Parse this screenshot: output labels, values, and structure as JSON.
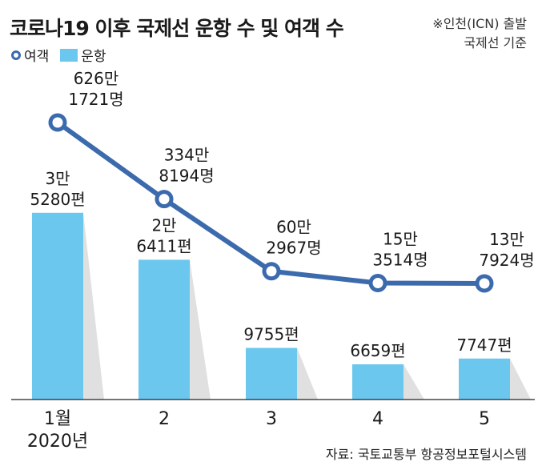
{
  "title": "코로나19 이후 국제선 운항 수 및 여객 수",
  "note": [
    "※인천(ICN) 출발",
    "국제선 기준"
  ],
  "legend": {
    "passengers": "여객",
    "flights": "운항"
  },
  "source": "자료: 국토교통부 항공정보포털시스템",
  "colors": {
    "bar": "#6cc7ef",
    "line": "#3b6aad",
    "shadow": "#d8d8d8"
  },
  "chart_data": {
    "type": "bar",
    "categories": [
      [
        "1월",
        "2020년"
      ],
      [
        "2"
      ],
      [
        "3"
      ],
      [
        "4"
      ],
      [
        "5"
      ]
    ],
    "series": [
      {
        "name": "운항",
        "type": "bar",
        "values": [
          35280,
          26411,
          9755,
          6659,
          7747
        ],
        "labels": [
          [
            "3만",
            "5280편"
          ],
          [
            "2만",
            "6411편"
          ],
          [
            "9755편"
          ],
          [
            "6659편"
          ],
          [
            "7747편"
          ]
        ]
      },
      {
        "name": "여객",
        "type": "line",
        "values": [
          6261721,
          3348194,
          602967,
          153514,
          137924
        ],
        "labels": [
          [
            "626만",
            "1721명"
          ],
          [
            "334만",
            "8194명"
          ],
          [
            "60만",
            "2967명"
          ],
          [
            "15만",
            "3514명"
          ],
          [
            "13만",
            "7924명"
          ]
        ]
      }
    ]
  }
}
